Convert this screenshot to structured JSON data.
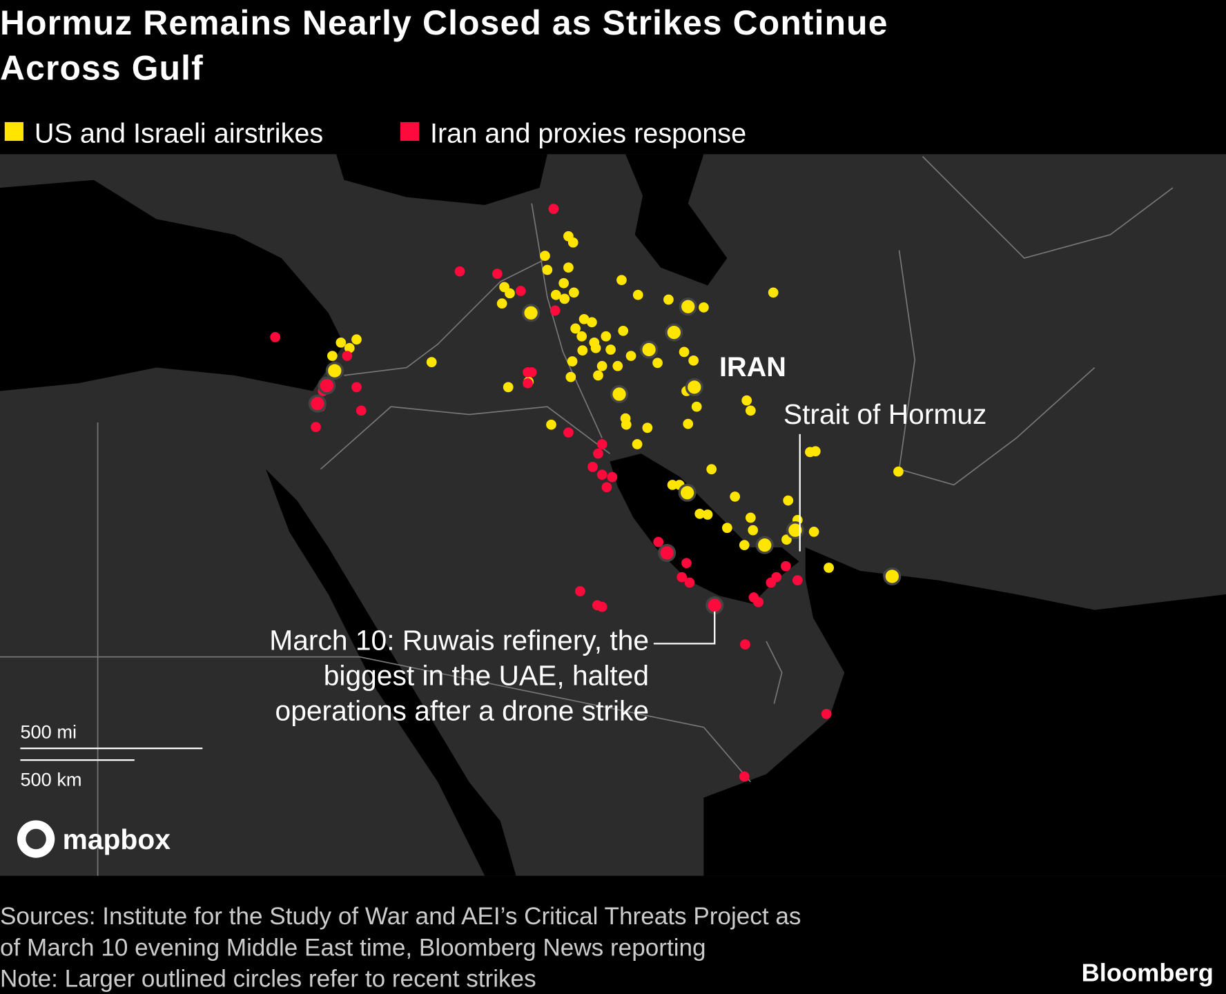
{
  "header": {
    "title_lines": [
      "Hormuz Remains Nearly Closed as Strikes Continue",
      "Across Gulf"
    ]
  },
  "legend": [
    "US and Israeli airstrikes",
    "Iran and proxies response"
  ],
  "map": {
    "country_label": "IRAN",
    "strait_label": "Strait of Hormuz",
    "annotation_lines": [
      "March 10: Ruwais refinery, the",
      "biggest in the UAE, halted",
      "operations after a drone strike"
    ],
    "scale": [
      "500 mi",
      "500 km"
    ],
    "attribution": "mapbox"
  },
  "footer": {
    "source_lines": [
      "Sources: Institute for the Study of War and AEI’s Critical Threats Project as",
      "of March 10 evening Middle East time, Bloomberg News reporting"
    ],
    "note": "Note: Larger outlined circles refer to recent strikes",
    "brand": "Bloomberg"
  }
}
